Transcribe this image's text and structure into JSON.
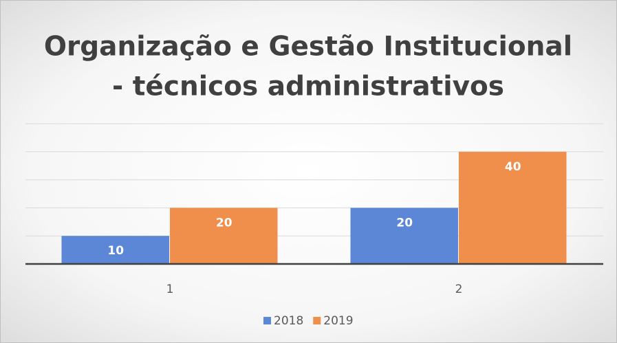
{
  "chart_data": {
    "type": "bar",
    "title": [
      "Organização e Gestão Institucional",
      "- técnicos administrativos"
    ],
    "categories": [
      "1",
      "2"
    ],
    "series": [
      {
        "name": "2018",
        "color": "#5b87d6",
        "values": [
          10,
          20
        ]
      },
      {
        "name": "2019",
        "color": "#f08e4c",
        "values": [
          20,
          40
        ]
      }
    ],
    "ylim": [
      0,
      50
    ],
    "yticks": [
      0,
      10,
      20,
      30,
      40,
      50
    ],
    "grid": true,
    "legend": "bottom"
  }
}
